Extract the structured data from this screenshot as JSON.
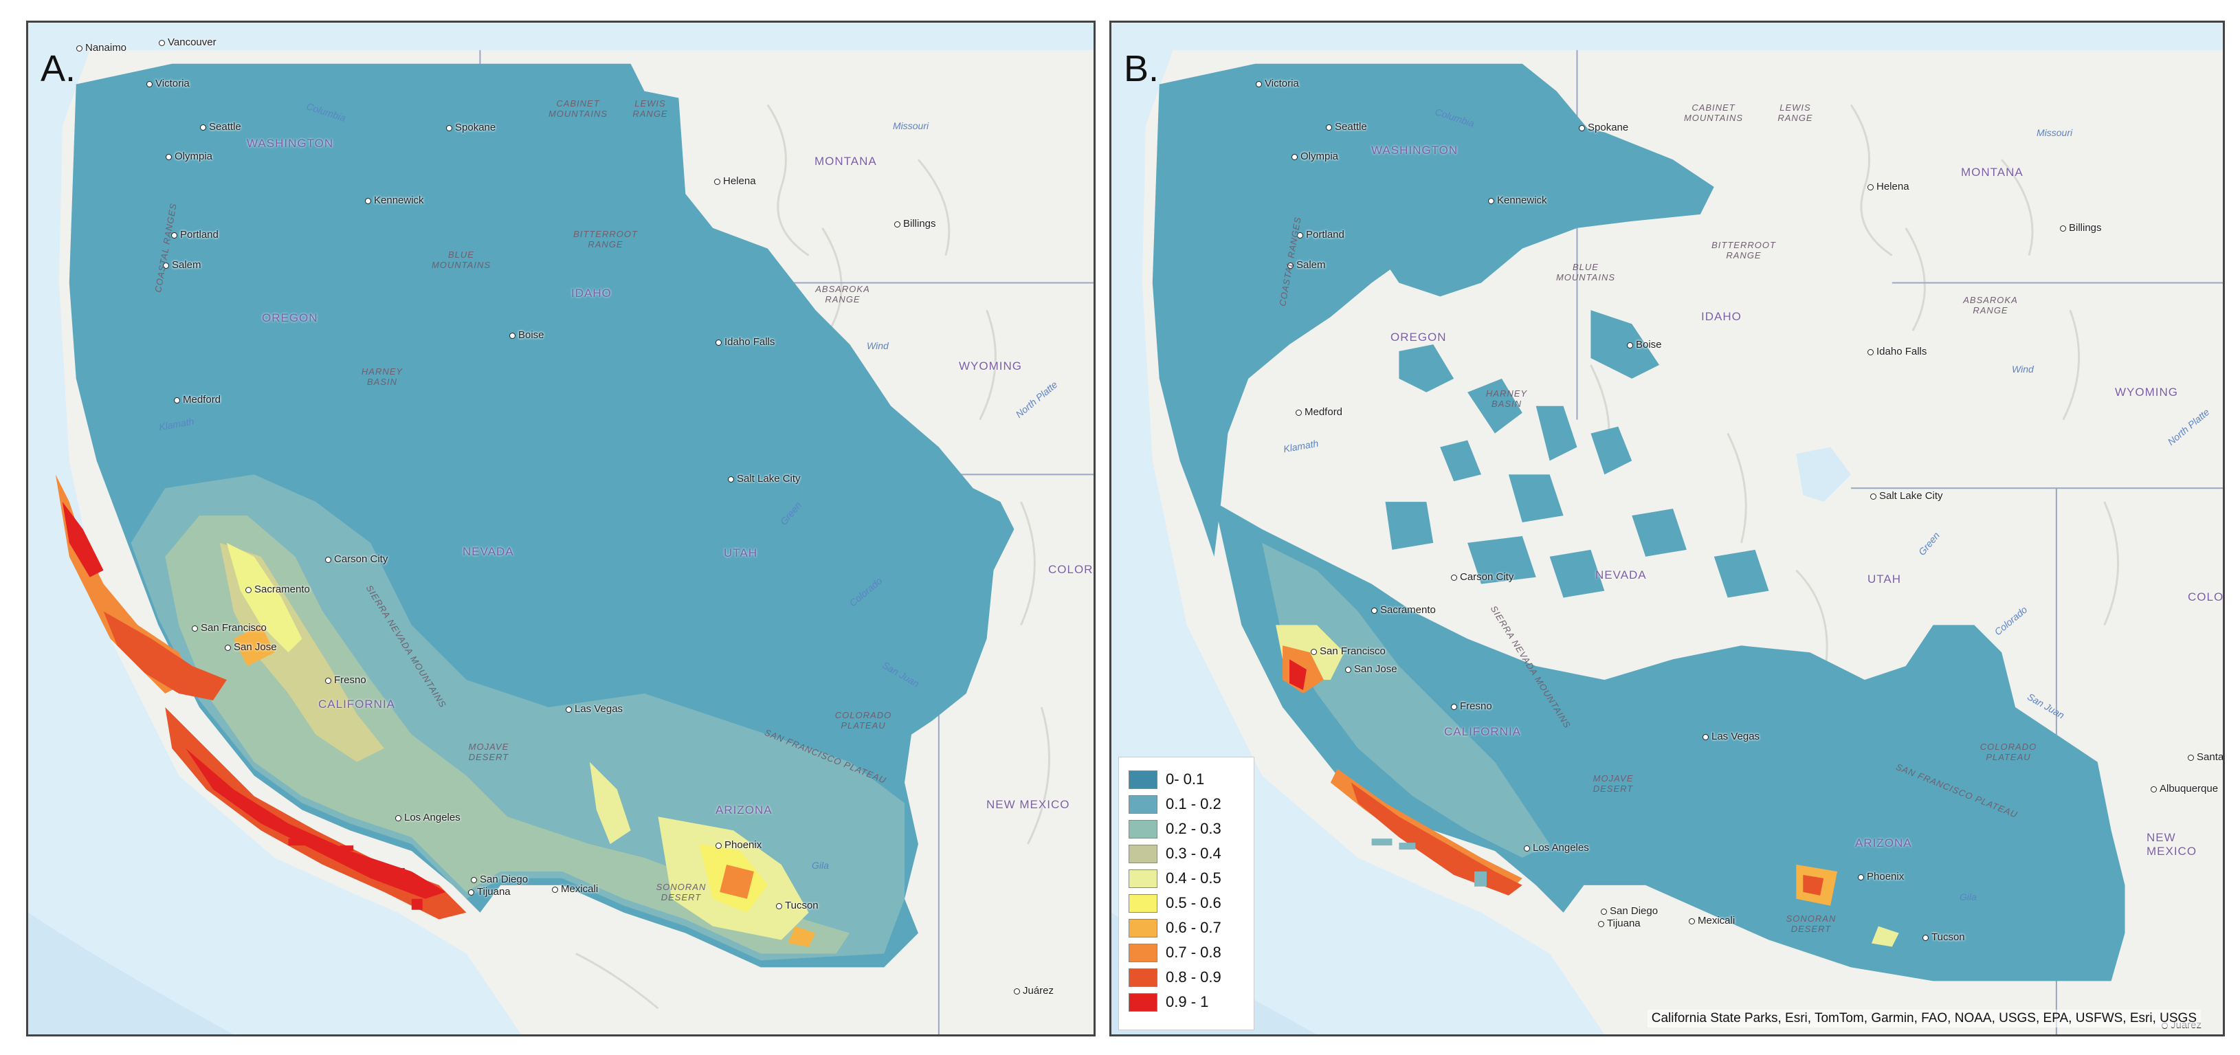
{
  "panels": [
    {
      "id": "A",
      "label": "A."
    },
    {
      "id": "B",
      "label": "B."
    }
  ],
  "places": {
    "nanaimo": "Nanaimo",
    "vancouver": "Vancouver",
    "victoria": "Victoria",
    "seattle": "Seattle",
    "olympia": "Olympia",
    "spokane": "Spokane",
    "kennewick": "Kennewick",
    "portland": "Portland",
    "salem": "Salem",
    "helena": "Helena",
    "billings": "Billings",
    "boise": "Boise",
    "idaho_falls": "Idaho Falls",
    "medford": "Medford",
    "salt_lake_city": "Salt Lake City",
    "carson_city": "Carson City",
    "sacramento": "Sacramento",
    "san_francisco": "San Francisco",
    "san_jose": "San Jose",
    "fresno": "Fresno",
    "las_vegas": "Las Vegas",
    "los_angeles": "Los Angeles",
    "san_diego": "San Diego",
    "tijuana": "Tijuana",
    "mexicali": "Mexicali",
    "phoenix": "Phoenix",
    "tucson": "Tucson",
    "albuquerque": "Albuquerque",
    "juarez": "Juárez",
    "santa_fe": "Santa"
  },
  "regions": {
    "washington": "WASHINGTON",
    "oregon": "OREGON",
    "idaho": "IDAHO",
    "montana": "MONTANA",
    "wyoming": "WYOMING",
    "nevada": "NEVADA",
    "utah": "UTAH",
    "california": "CALIFORNIA",
    "arizona": "ARIZONA",
    "colorado": "COLORA",
    "new_mexico": "NEW MEXICO"
  },
  "features": {
    "cabinet_mountains": "CABINET MOUNTAINS",
    "lewis_range": "LEWIS RANGE",
    "bitterroot_range": "BITTERROOT RANGE",
    "blue_mountains": "BLUE MOUNTAINS",
    "absaroka_range": "ABSAROKA RANGE",
    "harney_basin": "HARNEY BASIN",
    "coastal_ranges": "COASTAL RANGES",
    "sierra_nevada_mountains": "SIERRA NEVADA MOUNTAINS",
    "mojave_desert": "MOJAVE DESERT",
    "colorado_plateau": "COLORADO PLATEAU",
    "san_francisco_plateau": "SAN FRANCISCO PLATEAU",
    "sonoran_desert": "SONORAN DESERT"
  },
  "rivers": {
    "columbia": "Columbia",
    "missouri": "Missouri",
    "wind": "Wind",
    "north_platte": "North Platte",
    "klamath": "Klamath",
    "colorado": "Colorado",
    "green": "Green",
    "san_juan": "San Juan",
    "gila": "Gila"
  },
  "legend": {
    "items": [
      {
        "label": "0- 0.1",
        "color": "#3f8aa6"
      },
      {
        "label": "0.1 - 0.2",
        "color": "#66a9bd"
      },
      {
        "label": "0.2 - 0.3",
        "color": "#8fbfb3"
      },
      {
        "label": "0.3 - 0.4",
        "color": "#c4c79a"
      },
      {
        "label": "0.4 - 0.5",
        "color": "#ebee9a"
      },
      {
        "label": "0.5 - 0.6",
        "color": "#f8f26a"
      },
      {
        "label": "0.6 - 0.7",
        "color": "#f7b245"
      },
      {
        "label": "0.7 - 0.8",
        "color": "#f28a3a"
      },
      {
        "label": "0.8 - 0.9",
        "color": "#e8542a"
      },
      {
        "label": "0.9 - 1",
        "color": "#e32020"
      }
    ]
  },
  "credits": "California State Parks, Esri, TomTom, Garmin, FAO, NOAA, USGS, EPA, USFWS, Esri, USGS"
}
